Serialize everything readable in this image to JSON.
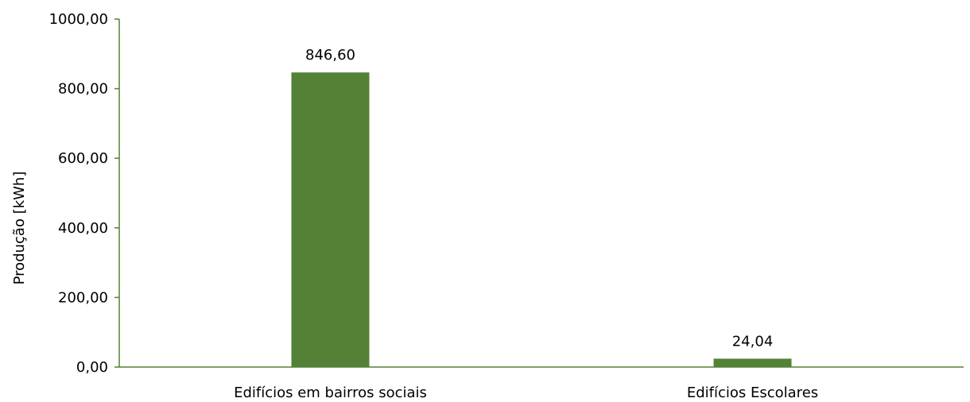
{
  "chart_data": {
    "type": "bar",
    "title": "",
    "xlabel": "",
    "ylabel": "Produção [kWh]",
    "categories": [
      "Edifícios em bairros sociais",
      "Edifícios Escolares"
    ],
    "values": [
      846.6,
      24.04
    ],
    "value_labels": [
      "846,60",
      "24,04"
    ],
    "ylim": [
      0,
      1000
    ],
    "yticks": [
      0,
      200,
      400,
      600,
      800,
      1000
    ],
    "ytick_labels": [
      "0,00",
      "200,00",
      "400,00",
      "600,00",
      "800,00",
      "1000,00"
    ],
    "grid": false,
    "legend": "none",
    "colors": {
      "bar": "#538135",
      "axis": "#538135"
    }
  }
}
